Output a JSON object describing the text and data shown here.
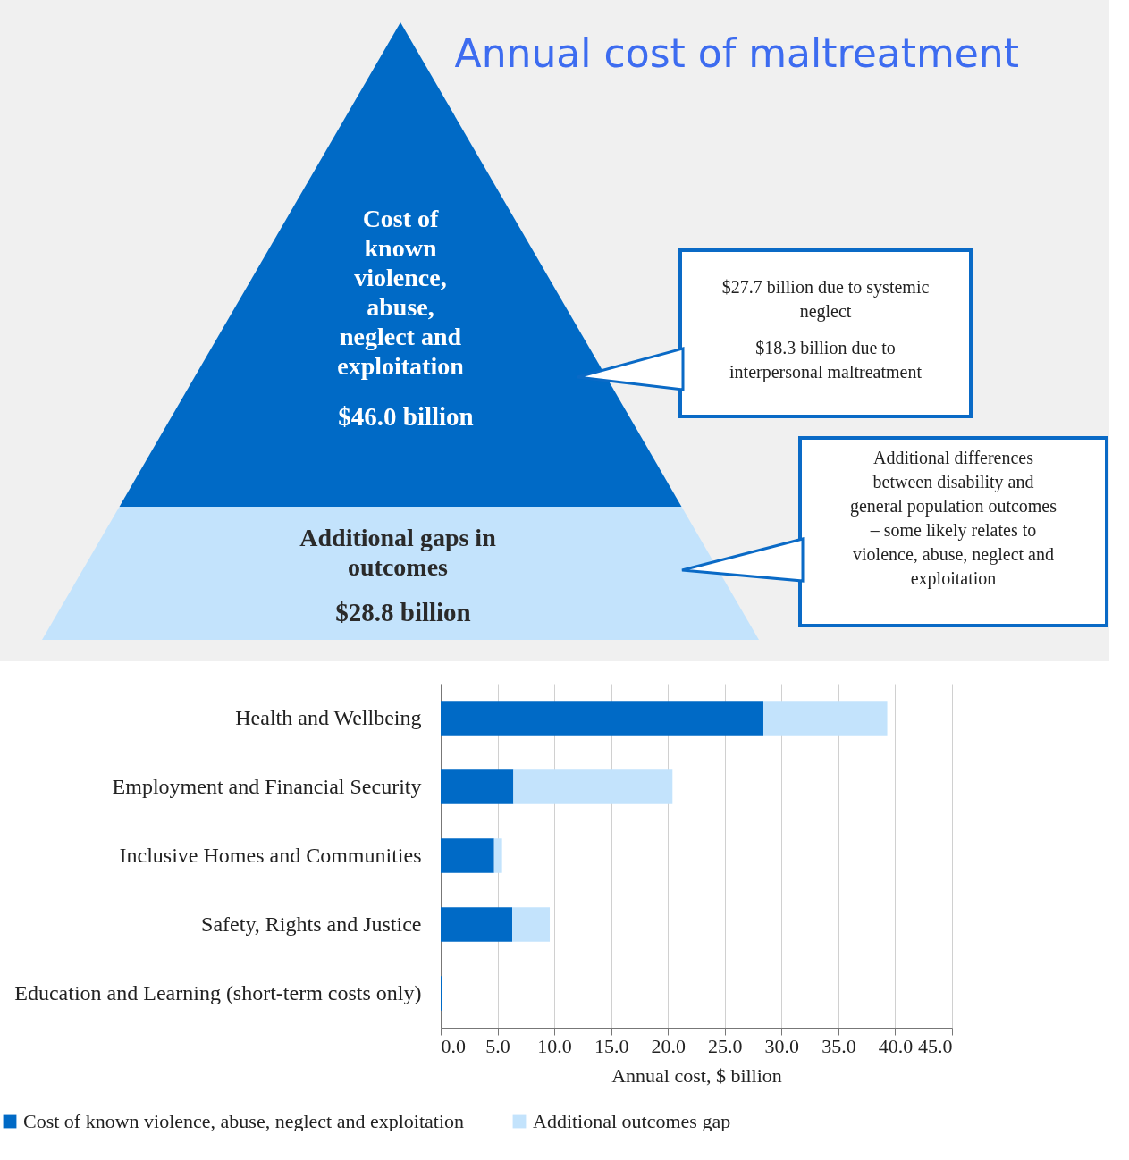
{
  "chart_data": [
    {
      "type": "other",
      "title": "Annual cost of maltreatment",
      "categories": [
        "Cost of known violence, abuse, neglect and exploitation",
        "Additional gaps in outcomes"
      ],
      "values": [
        46.0,
        28.8
      ],
      "value_labels": [
        "$46.0 billion",
        "$28.8 billion"
      ],
      "colors": [
        "#006ac6",
        "#c3e3fc"
      ],
      "annotations": [
        "$27.7 billion due to systemic neglect",
        "$18.3 billion due to interpersonal maltreatment",
        "Additional differences between disability and general population outcomes – some likely relates to violence, abuse, neglect and exploitation"
      ]
    },
    {
      "type": "bar",
      "orientation": "horizontal",
      "stacked": true,
      "categories": [
        "Health and Wellbeing",
        "Employment and Financial Security",
        "Inclusive Homes and Communities",
        "Safety, Rights and Justice",
        "Education and Learning (short-term costs only)"
      ],
      "series": [
        {
          "name": "Cost of known violence, abuse, neglect and exploitation",
          "color": "#006ac6",
          "values": [
            28.4,
            6.4,
            4.7,
            6.3,
            0.1
          ]
        },
        {
          "name": "Additional outcomes gap",
          "color": "#c3e3fc",
          "values": [
            10.9,
            14.0,
            0.7,
            3.3,
            0
          ]
        }
      ],
      "xlim": [
        0,
        45
      ],
      "xticks": [
        {
          "value": 0,
          "label": "0.0"
        },
        {
          "value": 5,
          "label": "5.0"
        },
        {
          "value": 10,
          "label": "10.0"
        },
        {
          "value": 15,
          "label": "15.0"
        },
        {
          "value": 20,
          "label": "20.0"
        },
        {
          "value": 25,
          "label": "25.0"
        },
        {
          "value": 30,
          "label": "30.0"
        },
        {
          "value": 35,
          "label": "35.0"
        },
        {
          "value": 40,
          "label": "40.0"
        },
        {
          "value": 45,
          "label": "45.0"
        }
      ],
      "xlabel": "Annual cost, $ billion",
      "grid": "x",
      "legend": "bottom"
    }
  ]
}
